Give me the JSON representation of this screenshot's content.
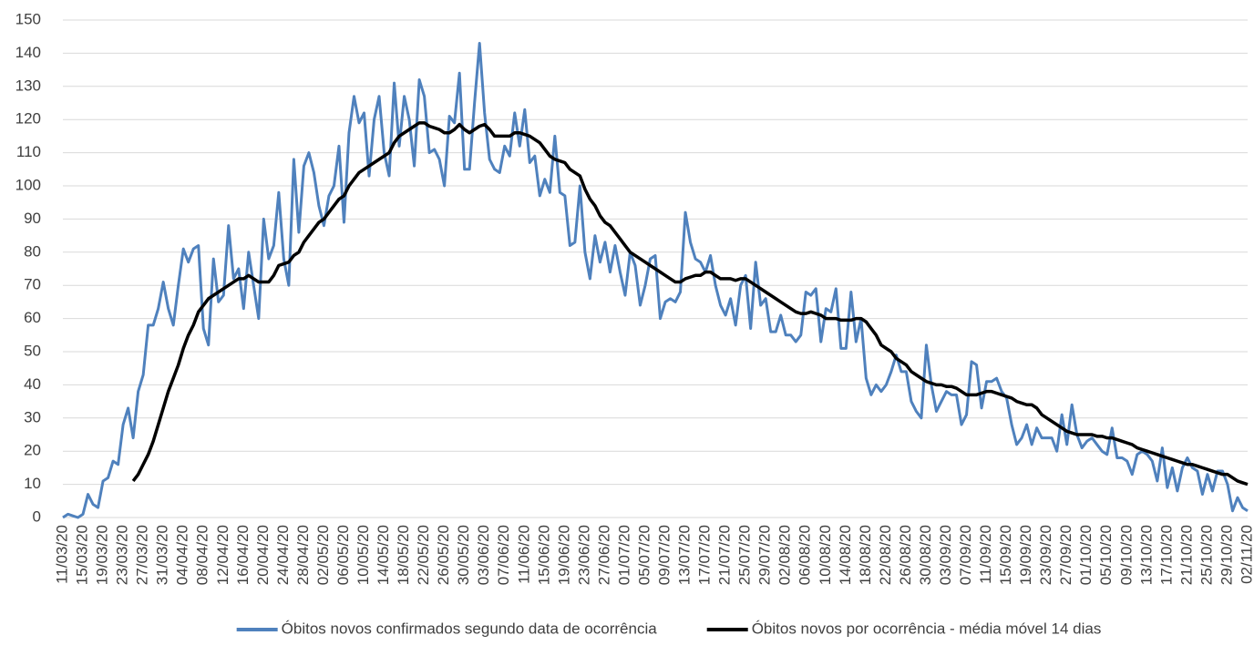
{
  "chart_data": {
    "type": "line",
    "categories": [
      "11/03/20",
      null,
      null,
      null,
      "15/03/20",
      null,
      null,
      null,
      "19/03/20",
      null,
      null,
      null,
      "23/03/20",
      null,
      null,
      null,
      "27/03/20",
      null,
      null,
      null,
      "31/03/20",
      null,
      null,
      null,
      "04/04/20",
      null,
      null,
      null,
      "08/04/20",
      null,
      null,
      null,
      "12/04/20",
      null,
      null,
      null,
      "16/04/20",
      null,
      null,
      null,
      "20/04/20",
      null,
      null,
      null,
      "24/04/20",
      null,
      null,
      null,
      "28/04/20",
      null,
      null,
      null,
      "02/05/20",
      null,
      null,
      null,
      "06/05/20",
      null,
      null,
      null,
      "10/05/20",
      null,
      null,
      null,
      "14/05/20",
      null,
      null,
      null,
      "18/05/20",
      null,
      null,
      null,
      "22/05/20",
      null,
      null,
      null,
      "26/05/20",
      null,
      null,
      null,
      "30/05/20",
      null,
      null,
      null,
      "03/06/20",
      null,
      null,
      null,
      "07/06/20",
      null,
      null,
      null,
      "11/06/20",
      null,
      null,
      null,
      "15/06/20",
      null,
      null,
      null,
      "19/06/20",
      null,
      null,
      null,
      "23/06/20",
      null,
      null,
      null,
      "27/06/20",
      null,
      null,
      null,
      "01/07/20",
      null,
      null,
      null,
      "05/07/20",
      null,
      null,
      null,
      "09/07/20",
      null,
      null,
      null,
      "13/07/20",
      null,
      null,
      null,
      "17/07/20",
      null,
      null,
      null,
      "21/07/20",
      null,
      null,
      null,
      "25/07/20",
      null,
      null,
      null,
      "29/07/20",
      null,
      null,
      null,
      "02/08/20",
      null,
      null,
      null,
      "06/08/20",
      null,
      null,
      null,
      "10/08/20",
      null,
      null,
      null,
      "14/08/20",
      null,
      null,
      null,
      "18/08/20",
      null,
      null,
      null,
      "22/08/20",
      null,
      null,
      null,
      "26/08/20",
      null,
      null,
      null,
      "30/08/20",
      null,
      null,
      null,
      "03/09/20",
      null,
      null,
      null,
      "07/09/20",
      null,
      null,
      null,
      "11/09/20",
      null,
      null,
      null,
      "15/09/20",
      null,
      null,
      null,
      "19/09/20",
      null,
      null,
      null,
      "23/09/20",
      null,
      null,
      null,
      "27/09/20",
      null,
      null,
      null,
      "01/10/20",
      null,
      null,
      null,
      "05/10/20",
      null,
      null,
      null,
      "09/10/20",
      null,
      null,
      null,
      "13/10/20",
      null,
      null,
      null,
      "17/10/20",
      null,
      null,
      null,
      "21/10/20",
      null,
      null,
      null,
      "25/10/20",
      null,
      null,
      null,
      "29/10/20",
      null,
      null,
      null,
      "02/11/20"
    ],
    "series": [
      {
        "name": "Óbitos novos confirmados segundo data de ocorrência",
        "color": "#4f81bd",
        "values": [
          0,
          1,
          0.5,
          0,
          1,
          7,
          4,
          3,
          11,
          12,
          17,
          16,
          28,
          33,
          24,
          38,
          43,
          58,
          58,
          63,
          71,
          63,
          58,
          70,
          81,
          77,
          81,
          82,
          57,
          52,
          78,
          65,
          67,
          88,
          72,
          75,
          63,
          80,
          70,
          60,
          90,
          78,
          82,
          98,
          78,
          70,
          108,
          86,
          106,
          110,
          104,
          94,
          88,
          97,
          100,
          112,
          89,
          116,
          127,
          119,
          122,
          103,
          120,
          127,
          110,
          103,
          131,
          112,
          127,
          120,
          106,
          132,
          127,
          110,
          111,
          108,
          100,
          121,
          119,
          134,
          105,
          105,
          125,
          143,
          122,
          108,
          105,
          104,
          112,
          109,
          122,
          112,
          123,
          107,
          109,
          97,
          102,
          98,
          115,
          98,
          97,
          82,
          83,
          100,
          80,
          72,
          85,
          77,
          83,
          74,
          82,
          74,
          67,
          80,
          76,
          64,
          70,
          78,
          79,
          60,
          65,
          66,
          65,
          68,
          92,
          83,
          78,
          77,
          74,
          79,
          70,
          64,
          61,
          66,
          58,
          70,
          73,
          57,
          77,
          64,
          66,
          56,
          56,
          61,
          55,
          55,
          53,
          55,
          68,
          67,
          69,
          53,
          63,
          62,
          69,
          51,
          51,
          68,
          53,
          60,
          42,
          37,
          40,
          38,
          40,
          44,
          49,
          44,
          44,
          35,
          32,
          30,
          52,
          40,
          32,
          35,
          38,
          37,
          37,
          28,
          31,
          47,
          46,
          33,
          41,
          41,
          42,
          38,
          36,
          28,
          22,
          24,
          28,
          22,
          27,
          24,
          24,
          24,
          20,
          31,
          22,
          34,
          25,
          21,
          23,
          24,
          22,
          20,
          19,
          27,
          18,
          18,
          17,
          13,
          19,
          20,
          19,
          17,
          11,
          21,
          9,
          15,
          8,
          15,
          18,
          15,
          14,
          7,
          13,
          8,
          14,
          14,
          10,
          2,
          6,
          3,
          2
        ]
      },
      {
        "name": "Óbitos novos por ocorrência - média móvel 14 dias",
        "color": "#000000",
        "values": [
          null,
          null,
          null,
          null,
          null,
          null,
          null,
          null,
          null,
          null,
          null,
          null,
          null,
          null,
          11,
          13,
          16,
          19,
          23,
          28,
          33,
          38,
          42,
          46,
          51,
          55,
          58,
          62,
          64,
          66,
          67,
          68,
          69,
          70,
          71,
          72,
          72,
          73,
          72,
          71,
          71,
          71,
          73,
          76,
          76.5,
          77,
          79,
          80,
          83,
          85,
          87,
          89,
          90,
          92,
          94,
          96,
          97,
          100,
          102,
          104,
          105,
          106,
          107,
          108,
          109,
          110,
          113,
          115,
          116,
          117,
          118,
          119,
          119,
          118,
          117.5,
          117,
          116,
          116,
          117,
          118.5,
          117,
          116,
          117,
          118,
          118.5,
          117,
          115,
          115,
          115,
          115,
          116,
          116,
          115.5,
          115,
          114,
          113,
          111,
          109,
          108,
          107.5,
          107,
          105,
          104,
          103,
          99,
          96,
          94,
          91,
          89,
          88,
          86,
          84,
          82,
          80,
          79,
          78,
          77,
          76,
          75,
          74,
          73,
          72,
          71,
          71,
          72,
          72.5,
          73,
          73,
          74,
          74,
          73,
          72,
          72,
          72,
          71.5,
          72,
          72,
          71,
          70,
          69,
          68,
          67,
          66,
          65,
          64,
          63,
          62,
          61.5,
          61.5,
          62,
          61.5,
          61,
          60,
          60,
          60,
          59.5,
          59.5,
          59.5,
          60,
          60,
          59,
          57,
          55,
          52,
          51,
          50,
          48,
          47,
          46,
          44,
          43,
          42,
          41,
          40.5,
          40,
          40,
          39.5,
          39.5,
          39,
          38,
          37,
          37,
          37,
          37.5,
          38,
          38,
          37.5,
          37,
          36.5,
          36,
          35,
          34.5,
          34,
          34,
          33,
          31,
          30,
          29,
          28,
          27,
          26,
          25.5,
          25,
          25,
          25,
          25,
          24.5,
          24.5,
          24,
          24,
          23.5,
          23,
          22.5,
          22,
          21,
          20.5,
          20,
          19.5,
          19,
          18.5,
          18,
          17.5,
          17,
          16.5,
          16,
          16,
          15.5,
          15,
          14.5,
          14,
          13.5,
          13,
          13,
          12,
          11,
          10.5,
          10
        ]
      }
    ],
    "ylim": [
      0,
      150
    ],
    "yticks": [
      0,
      10,
      20,
      30,
      40,
      50,
      60,
      70,
      80,
      90,
      100,
      110,
      120,
      130,
      140,
      150
    ],
    "grid": true,
    "legend": "bottom"
  }
}
